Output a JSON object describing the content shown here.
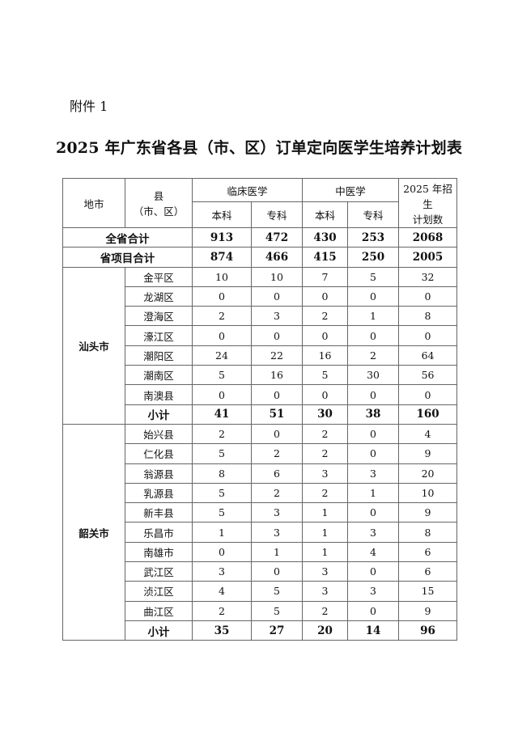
{
  "attachment_label": "附件 1",
  "title": "2025 年广东省各县（市、区）订单定向医学生培养计划表",
  "header": {
    "city": "地市",
    "county_line1": "县",
    "county_line2": "（市、区）",
    "clinical": "临床医学",
    "tcm": "中医学",
    "undergrad": "本科",
    "junior": "专科",
    "total_line1": "2025 年招生",
    "total_line2": "计划数"
  },
  "summary_rows": [
    {
      "label": "全省合计",
      "values": [
        "913",
        "472",
        "430",
        "253",
        "2068"
      ]
    },
    {
      "label": "省项目合计",
      "values": [
        "874",
        "466",
        "415",
        "250",
        "2005"
      ]
    }
  ],
  "groups": [
    {
      "city": "汕头市",
      "rows": [
        {
          "county": "金平区",
          "values": [
            "10",
            "10",
            "7",
            "5",
            "32"
          ]
        },
        {
          "county": "龙湖区",
          "values": [
            "0",
            "0",
            "0",
            "0",
            "0"
          ]
        },
        {
          "county": "澄海区",
          "values": [
            "2",
            "3",
            "2",
            "1",
            "8"
          ]
        },
        {
          "county": "濠江区",
          "values": [
            "0",
            "0",
            "0",
            "0",
            "0"
          ]
        },
        {
          "county": "潮阳区",
          "values": [
            "24",
            "22",
            "16",
            "2",
            "64"
          ]
        },
        {
          "county": "潮南区",
          "values": [
            "5",
            "16",
            "5",
            "30",
            "56"
          ]
        },
        {
          "county": "南澳县",
          "values": [
            "0",
            "0",
            "0",
            "0",
            "0"
          ]
        }
      ],
      "subtotal": {
        "label": "小计",
        "values": [
          "41",
          "51",
          "30",
          "38",
          "160"
        ]
      }
    },
    {
      "city": "韶关市",
      "rows": [
        {
          "county": "始兴县",
          "values": [
            "2",
            "0",
            "2",
            "0",
            "4"
          ]
        },
        {
          "county": "仁化县",
          "values": [
            "5",
            "2",
            "2",
            "0",
            "9"
          ]
        },
        {
          "county": "翁源县",
          "values": [
            "8",
            "6",
            "3",
            "3",
            "20"
          ]
        },
        {
          "county": "乳源县",
          "values": [
            "5",
            "2",
            "2",
            "1",
            "10"
          ]
        },
        {
          "county": "新丰县",
          "values": [
            "5",
            "3",
            "1",
            "0",
            "9"
          ]
        },
        {
          "county": "乐昌市",
          "values": [
            "1",
            "3",
            "1",
            "3",
            "8"
          ]
        },
        {
          "county": "南雄市",
          "values": [
            "0",
            "1",
            "1",
            "4",
            "6"
          ]
        },
        {
          "county": "武江区",
          "values": [
            "3",
            "0",
            "3",
            "0",
            "6"
          ]
        },
        {
          "county": "浈江区",
          "values": [
            "4",
            "5",
            "3",
            "3",
            "15"
          ]
        },
        {
          "county": "曲江区",
          "values": [
            "2",
            "5",
            "2",
            "0",
            "9"
          ]
        }
      ],
      "subtotal": {
        "label": "小计",
        "values": [
          "35",
          "27",
          "20",
          "14",
          "96"
        ]
      }
    }
  ]
}
